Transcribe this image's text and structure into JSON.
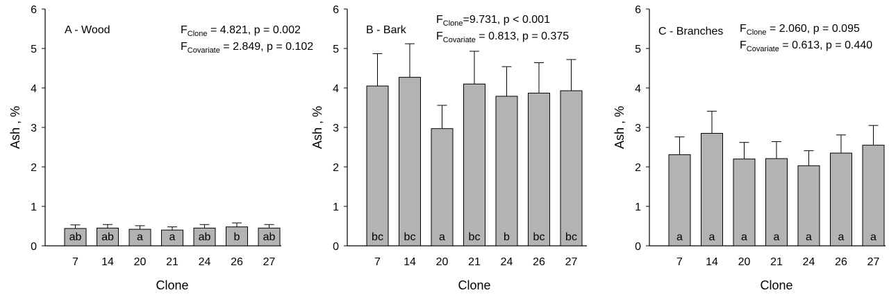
{
  "colors": {
    "bar_fill": "#b3b3b3",
    "stroke": "#000000",
    "background": "#ffffff"
  },
  "chart_data": [
    {
      "type": "bar",
      "panel_label": "A - Wood",
      "categories": [
        "7",
        "14",
        "20",
        "21",
        "24",
        "26",
        "27"
      ],
      "values": [
        0.44,
        0.45,
        0.42,
        0.4,
        0.45,
        0.48,
        0.45
      ],
      "errors": [
        0.09,
        0.09,
        0.09,
        0.08,
        0.09,
        0.1,
        0.09
      ],
      "letters": [
        "ab",
        "ab",
        "a",
        "a",
        "ab",
        "b",
        "ab"
      ],
      "stats": [
        {
          "main": "F",
          "sub": "Clone",
          "text": " = 4.821, p = 0.002"
        },
        {
          "main": "F",
          "sub": "Covariate",
          "text": " = 2.849, p = 0.102"
        }
      ],
      "xlabel": "Clone",
      "ylabel": "Ash , %",
      "ylim": [
        0,
        6
      ],
      "yticks": [
        "0",
        "1",
        "2",
        "3",
        "4",
        "5",
        "6"
      ],
      "grid": false
    },
    {
      "type": "bar",
      "panel_label": "B - Bark",
      "categories": [
        "7",
        "14",
        "20",
        "21",
        "24",
        "26",
        "27"
      ],
      "values": [
        4.05,
        4.27,
        2.97,
        4.1,
        3.79,
        3.87,
        3.93
      ],
      "errors": [
        0.82,
        0.85,
        0.59,
        0.83,
        0.75,
        0.77,
        0.79
      ],
      "letters": [
        "bc",
        "bc",
        "a",
        "bc",
        "b",
        "bc",
        "bc"
      ],
      "stats": [
        {
          "main": "F",
          "sub": "Clone",
          "text": "=9.731, p < 0.001"
        },
        {
          "main": "F",
          "sub": "Covariate",
          "text": " = 0.813, p = 0.375"
        }
      ],
      "xlabel": "Clone",
      "ylabel": "Ash , %",
      "ylim": [
        0,
        6
      ],
      "yticks": [
        "0",
        "1",
        "2",
        "3",
        "4",
        "5",
        "6"
      ],
      "grid": false
    },
    {
      "type": "bar",
      "panel_label": "C - Branches",
      "categories": [
        "7",
        "14",
        "20",
        "21",
        "24",
        "26",
        "27"
      ],
      "values": [
        2.31,
        2.85,
        2.2,
        2.21,
        2.03,
        2.35,
        2.55
      ],
      "errors": [
        0.45,
        0.56,
        0.42,
        0.43,
        0.38,
        0.46,
        0.5
      ],
      "letters": [
        "a",
        "a",
        "a",
        "a",
        "a",
        "a",
        "a"
      ],
      "stats": [
        {
          "main": "F",
          "sub": "Clone",
          "text": " = 2.060, p = 0.095"
        },
        {
          "main": "F",
          "sub": "Covariate",
          "text": " = 0.613, p = 0.440"
        }
      ],
      "xlabel": "Clone",
      "ylabel": "Ash , %",
      "ylim": [
        0,
        6
      ],
      "yticks": [
        "0",
        "1",
        "2",
        "3",
        "4",
        "5",
        "6"
      ],
      "grid": false
    }
  ]
}
